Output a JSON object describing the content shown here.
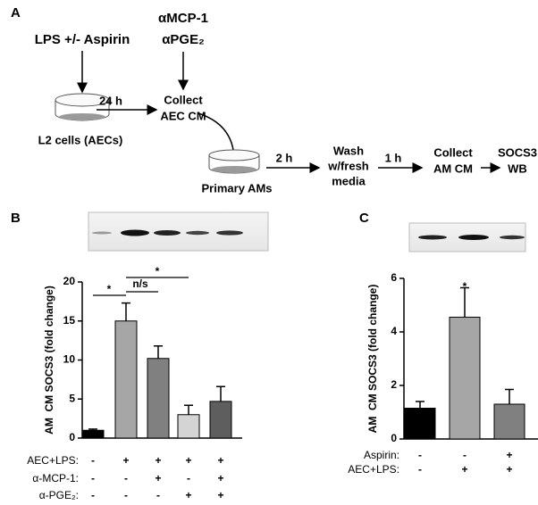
{
  "diagram": {
    "panel_label": "A",
    "treatment": "LPS +/- Aspirin",
    "antibodies": [
      "αMCP-1",
      "αPGE₂"
    ],
    "step1_time": "24 h",
    "collect_aec": [
      "Collect",
      "AEC CM"
    ],
    "l2_cells": "L2 cells (AECs)",
    "primary_ams": "Primary AMs",
    "step2_time": "2 h",
    "wash": [
      "Wash",
      "w/fresh",
      "media"
    ],
    "step3_time": "1 h",
    "collect_am": [
      "Collect",
      "AM CM"
    ],
    "readout": [
      "SOCS3",
      "WB"
    ]
  },
  "chart_data": [
    {
      "type": "bar",
      "panel_label": "B",
      "y_label": "AM  CM SOCS3 (fold change)",
      "categories": [
        null,
        null,
        null,
        null,
        null
      ],
      "values": [
        1.0,
        15.0,
        10.2,
        3.0,
        4.7
      ],
      "errors": [
        0.15,
        2.3,
        1.6,
        1.2,
        1.9
      ],
      "colors": [
        "#000000",
        "#a6a6a6",
        "#808080",
        "#d4d4d4",
        "#5e5e5e"
      ],
      "ylim": [
        0,
        20
      ],
      "yticks": [
        0,
        5,
        10,
        15,
        20
      ],
      "annotations": [
        "*",
        "n/s",
        "*"
      ],
      "conditions": [
        {
          "label": "AEC+LPS:",
          "signs": [
            "-",
            "+",
            "+",
            "+",
            "+"
          ]
        },
        {
          "label": "α-MCP-1:",
          "signs": [
            "-",
            "-",
            "+",
            "-",
            "+"
          ]
        },
        {
          "label": "α-PGE₂:",
          "signs": [
            "-",
            "-",
            "-",
            "+",
            "+"
          ]
        }
      ]
    },
    {
      "type": "bar",
      "panel_label": "C",
      "y_label": "AM  CM SOCS3 (fold change)",
      "categories": [
        null,
        null,
        null
      ],
      "values": [
        1.15,
        4.55,
        1.3
      ],
      "errors": [
        0.25,
        1.1,
        0.55
      ],
      "colors": [
        "#000000",
        "#a6a6a6",
        "#808080"
      ],
      "ylim": [
        0,
        6
      ],
      "yticks": [
        0,
        2,
        4,
        6
      ],
      "annotations": [
        "*"
      ],
      "conditions": [
        {
          "label": "Aspirin:",
          "signs": [
            "-",
            "-",
            "+"
          ]
        },
        {
          "label": "AEC+LPS:",
          "signs": [
            "-",
            "+",
            "+"
          ]
        }
      ]
    }
  ]
}
